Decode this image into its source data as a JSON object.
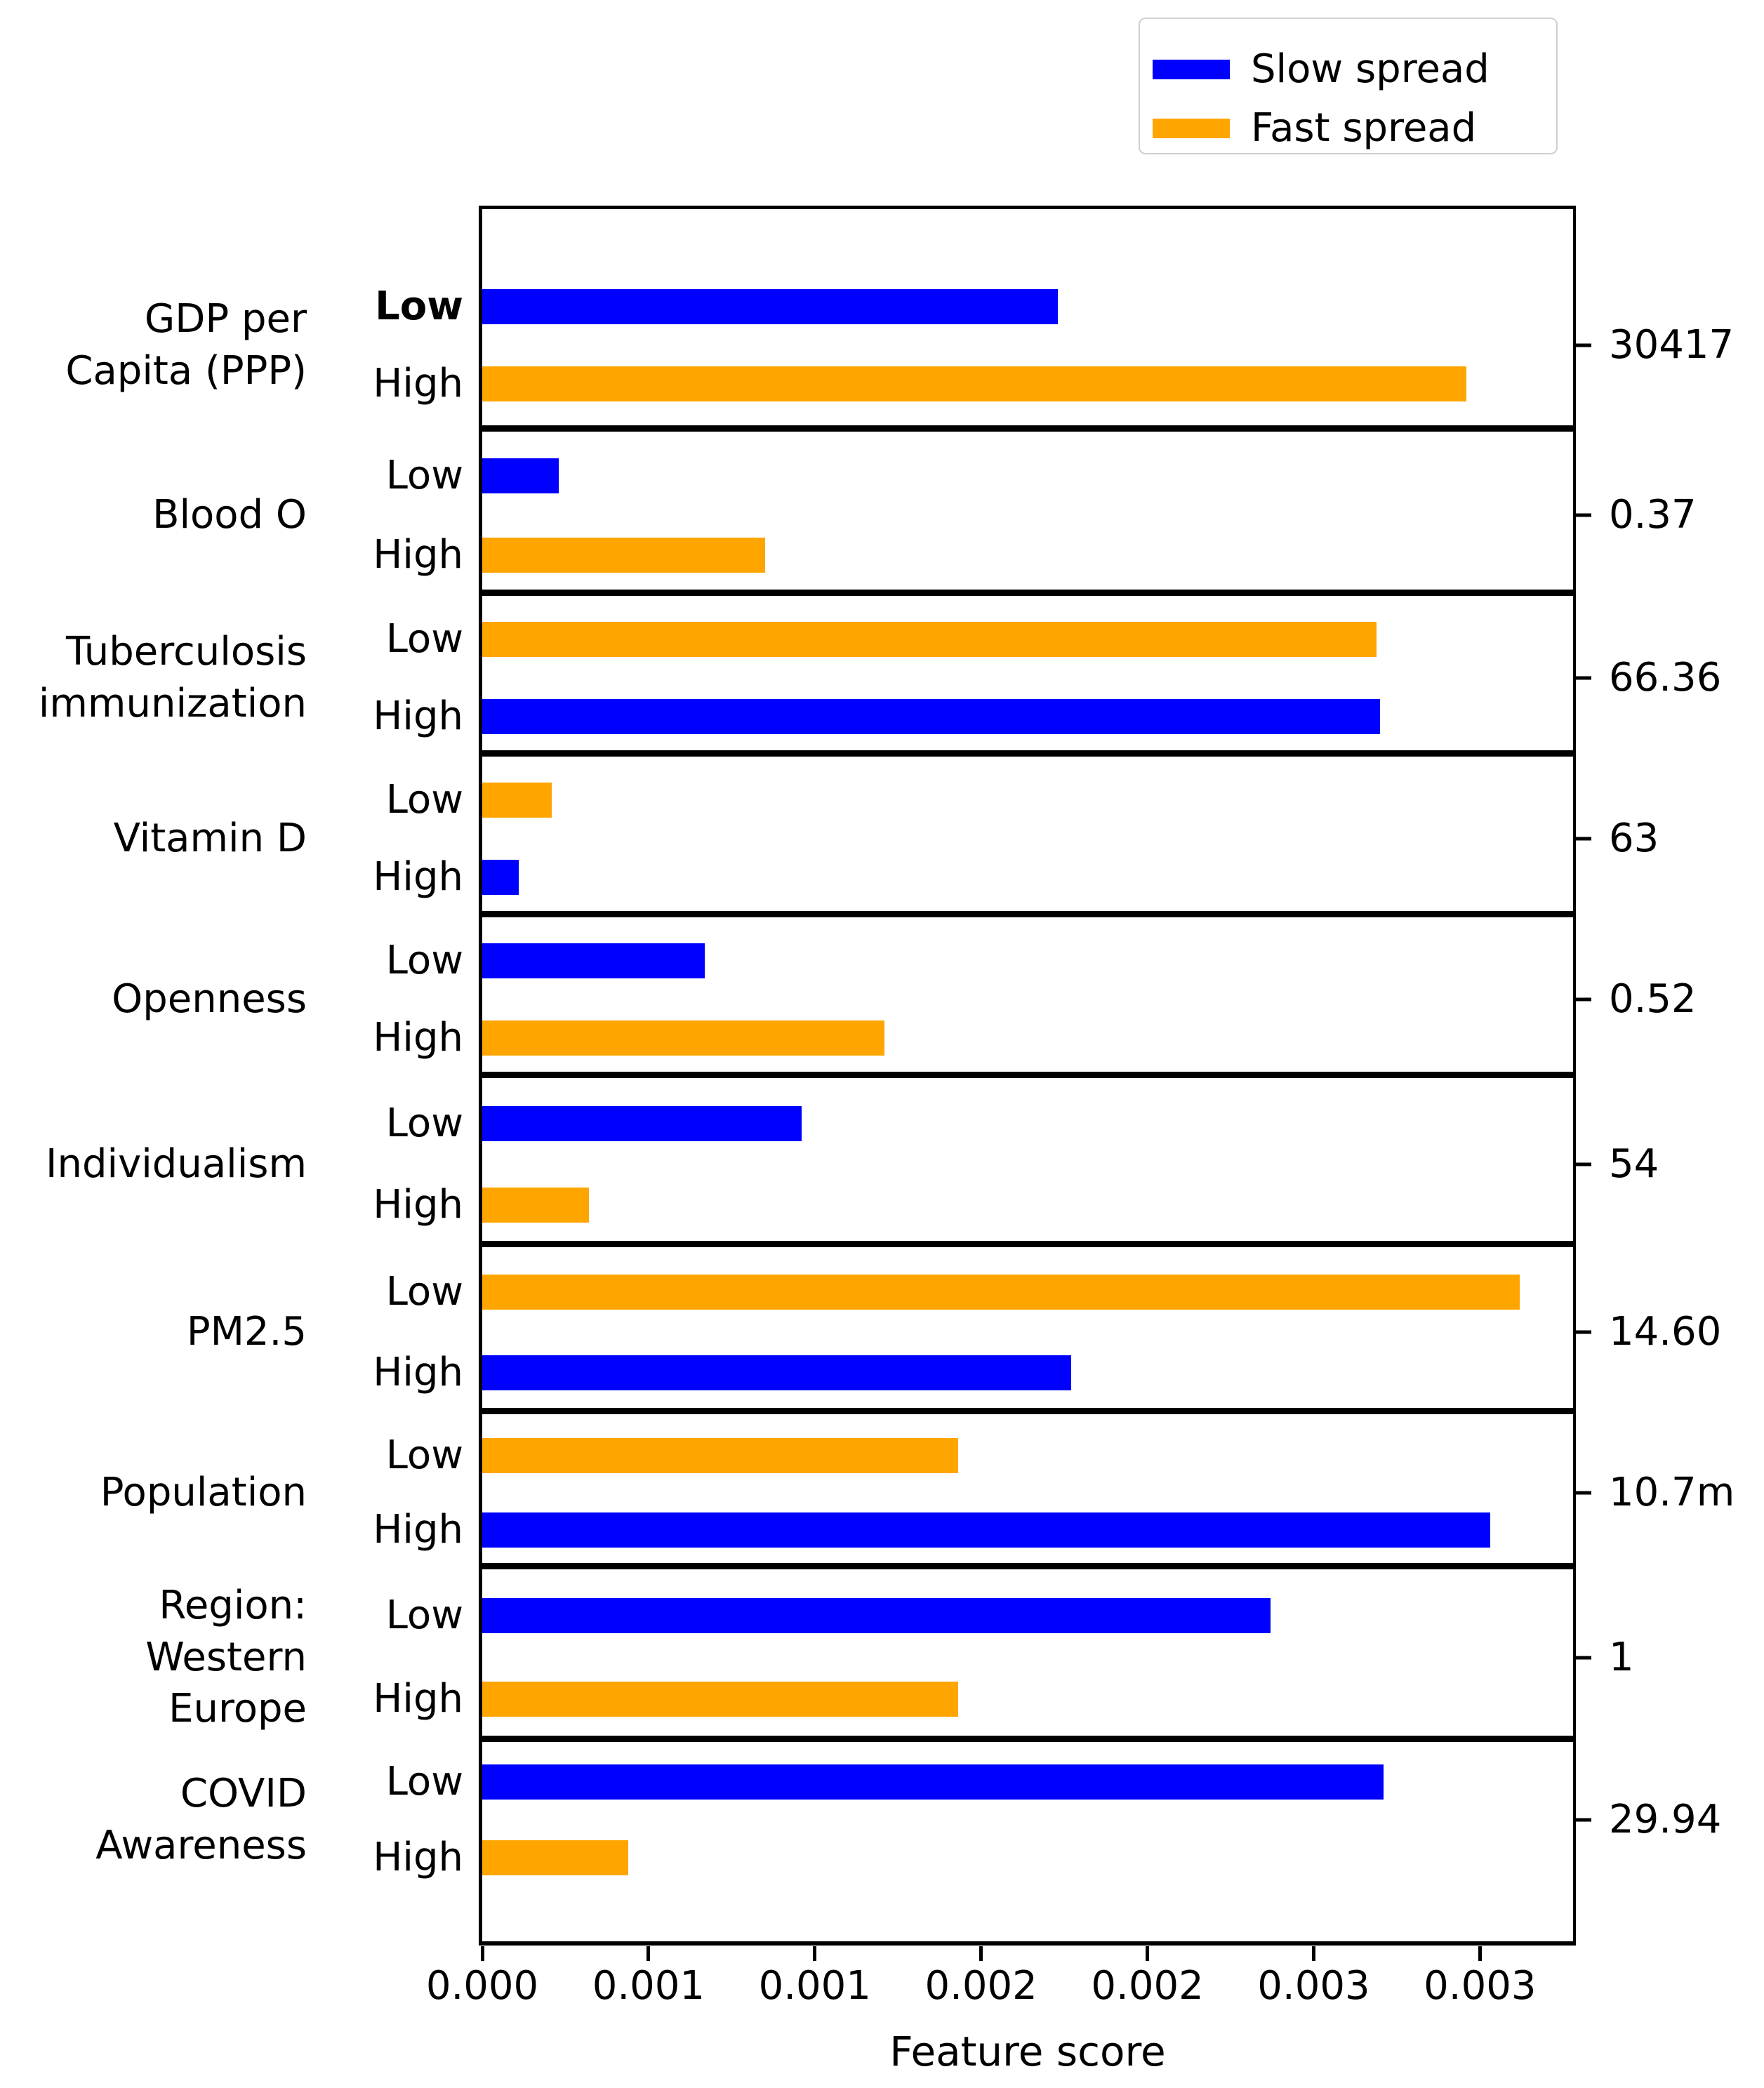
{
  "figure": {
    "background": "#ffffff"
  },
  "legend": {
    "items": [
      {
        "label": "Slow spread",
        "color": "#0000ff"
      },
      {
        "label": "Fast spread",
        "color": "#ffa500"
      }
    ]
  },
  "chart_data": {
    "type": "bar",
    "orientation": "horizontal",
    "title": "",
    "xlabel": "Feature score",
    "ylabel": "",
    "xlim": [
      0,
      0.00328
    ],
    "grid": false,
    "legend_position": "top-right",
    "series_colors": {
      "Slow spread": "#0000ff",
      "Fast spread": "#ffa500"
    },
    "x_ticks": [
      {
        "value": 0.0,
        "label": "0.000"
      },
      {
        "value": 0.0005,
        "label": "0.001"
      },
      {
        "value": 0.001,
        "label": "0.001"
      },
      {
        "value": 0.0015,
        "label": "0.002"
      },
      {
        "value": 0.002,
        "label": "0.002"
      },
      {
        "value": 0.0025,
        "label": "0.003"
      },
      {
        "value": 0.003,
        "label": "0.003"
      }
    ],
    "panels": [
      {
        "feature_lines": [
          "GDP per",
          "Capita (PPP)"
        ],
        "right_value": "30417",
        "bars": [
          {
            "tick": "Low",
            "bold": true,
            "series": "Slow spread",
            "color": "#0000ff",
            "value": 0.00173
          },
          {
            "tick": "High",
            "bold": false,
            "series": "Fast spread",
            "color": "#ffa500",
            "value": 0.00296
          }
        ]
      },
      {
        "feature_lines": [
          "Blood O"
        ],
        "right_value": "0.37",
        "bars": [
          {
            "tick": "Low",
            "bold": false,
            "series": "Slow spread",
            "color": "#0000ff",
            "value": 0.00023
          },
          {
            "tick": "High",
            "bold": false,
            "series": "Fast spread",
            "color": "#ffa500",
            "value": 0.00085
          }
        ]
      },
      {
        "feature_lines": [
          "Tuberculosis",
          "immunization"
        ],
        "right_value": "66.36",
        "bars": [
          {
            "tick": "Low",
            "bold": false,
            "series": "Fast spread",
            "color": "#ffa500",
            "value": 0.00269
          },
          {
            "tick": "High",
            "bold": false,
            "series": "Slow spread",
            "color": "#0000ff",
            "value": 0.0027
          }
        ]
      },
      {
        "feature_lines": [
          "Vitamin D"
        ],
        "right_value": "63",
        "bars": [
          {
            "tick": "Low",
            "bold": false,
            "series": "Fast spread",
            "color": "#ffa500",
            "value": 0.00021
          },
          {
            "tick": "High",
            "bold": false,
            "series": "Slow spread",
            "color": "#0000ff",
            "value": 0.00011
          }
        ]
      },
      {
        "feature_lines": [
          "Openness"
        ],
        "right_value": "0.52",
        "bars": [
          {
            "tick": "Low",
            "bold": false,
            "series": "Slow spread",
            "color": "#0000ff",
            "value": 0.00067
          },
          {
            "tick": "High",
            "bold": false,
            "series": "Fast spread",
            "color": "#ffa500",
            "value": 0.00121
          }
        ]
      },
      {
        "feature_lines": [
          "Individualism"
        ],
        "right_value": "54",
        "bars": [
          {
            "tick": "Low",
            "bold": false,
            "series": "Slow spread",
            "color": "#0000ff",
            "value": 0.00096
          },
          {
            "tick": "High",
            "bold": false,
            "series": "Fast spread",
            "color": "#ffa500",
            "value": 0.00032
          }
        ]
      },
      {
        "feature_lines": [
          "PM2.5"
        ],
        "right_value": "14.60",
        "bars": [
          {
            "tick": "Low",
            "bold": false,
            "series": "Fast spread",
            "color": "#ffa500",
            "value": 0.00312
          },
          {
            "tick": "High",
            "bold": false,
            "series": "Slow spread",
            "color": "#0000ff",
            "value": 0.00177
          }
        ]
      },
      {
        "feature_lines": [
          "Population"
        ],
        "right_value": "10.7m",
        "bars": [
          {
            "tick": "Low",
            "bold": false,
            "series": "Fast spread",
            "color": "#ffa500",
            "value": 0.00143
          },
          {
            "tick": "High",
            "bold": false,
            "series": "Slow spread",
            "color": "#0000ff",
            "value": 0.00303
          }
        ]
      },
      {
        "feature_lines": [
          "Region:",
          "Western",
          "Europe"
        ],
        "right_value": "1",
        "bars": [
          {
            "tick": "Low",
            "bold": false,
            "series": "Slow spread",
            "color": "#0000ff",
            "value": 0.00237
          },
          {
            "tick": "High",
            "bold": false,
            "series": "Fast spread",
            "color": "#ffa500",
            "value": 0.00143
          }
        ]
      },
      {
        "feature_lines": [
          "COVID",
          "Awareness"
        ],
        "right_value": "29.94",
        "bars": [
          {
            "tick": "Low",
            "bold": false,
            "series": "Slow spread",
            "color": "#0000ff",
            "value": 0.00271
          },
          {
            "tick": "High",
            "bold": false,
            "series": "Fast spread",
            "color": "#ffa500",
            "value": 0.00044
          }
        ]
      }
    ]
  }
}
